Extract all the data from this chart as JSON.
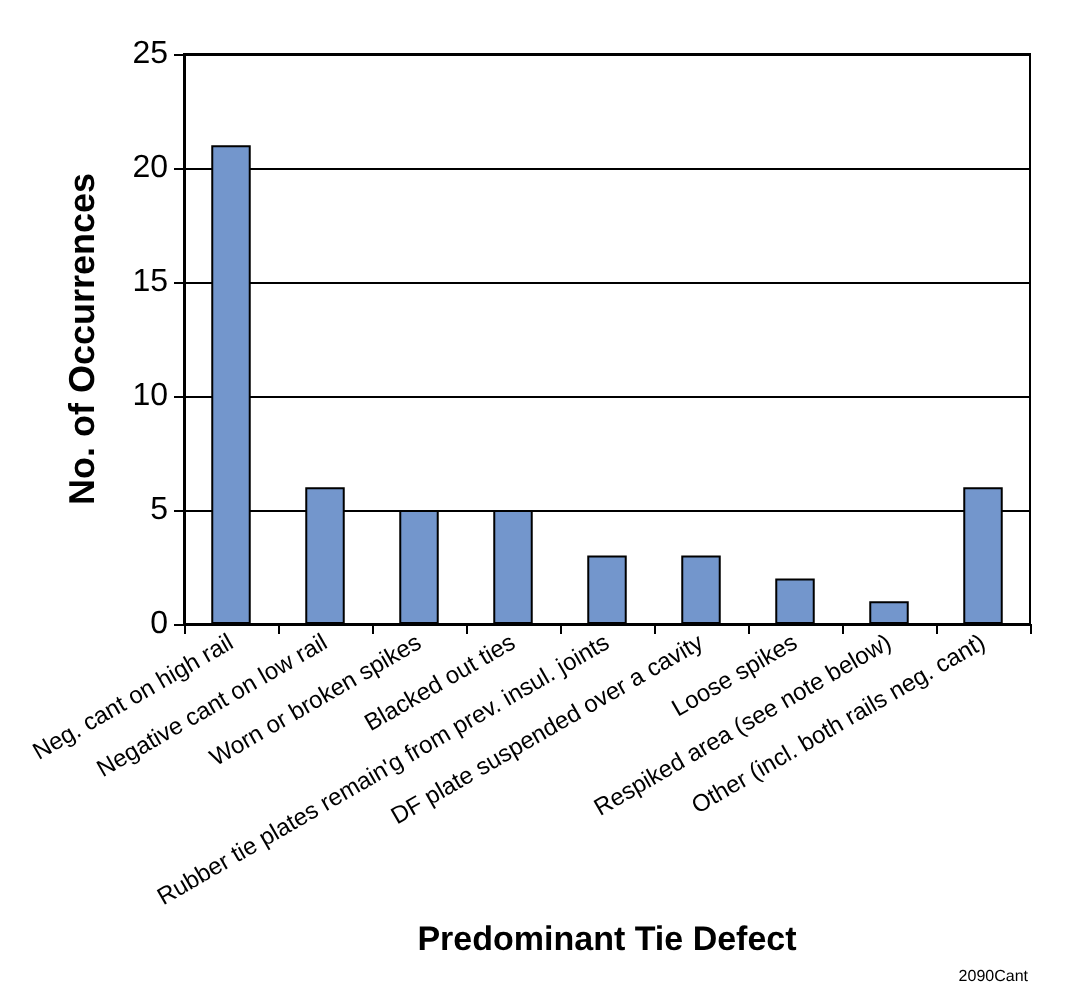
{
  "chart_data": {
    "type": "bar",
    "xlabel": "Predominant Tie Defect",
    "ylabel": "No. of Occurrences",
    "categories": [
      "Neg. cant on high rail",
      "Negative cant on low rail",
      "Worn or broken spikes",
      "Blacked out ties",
      "Rubber tie plates remain'g from prev. insul. joints",
      "DF plate suspended over a cavity",
      "Loose spikes",
      "Respiked area (see note below)",
      "Other (incl. both rails neg. cant)"
    ],
    "values": [
      21,
      6,
      5,
      5,
      3,
      3,
      2,
      1,
      6
    ],
    "color": "#7396cc",
    "ylim": [
      0,
      25
    ],
    "yticks": [
      0,
      5,
      10,
      15,
      20,
      25
    ],
    "grid": "y",
    "annotations": [
      "2090Cant"
    ]
  }
}
